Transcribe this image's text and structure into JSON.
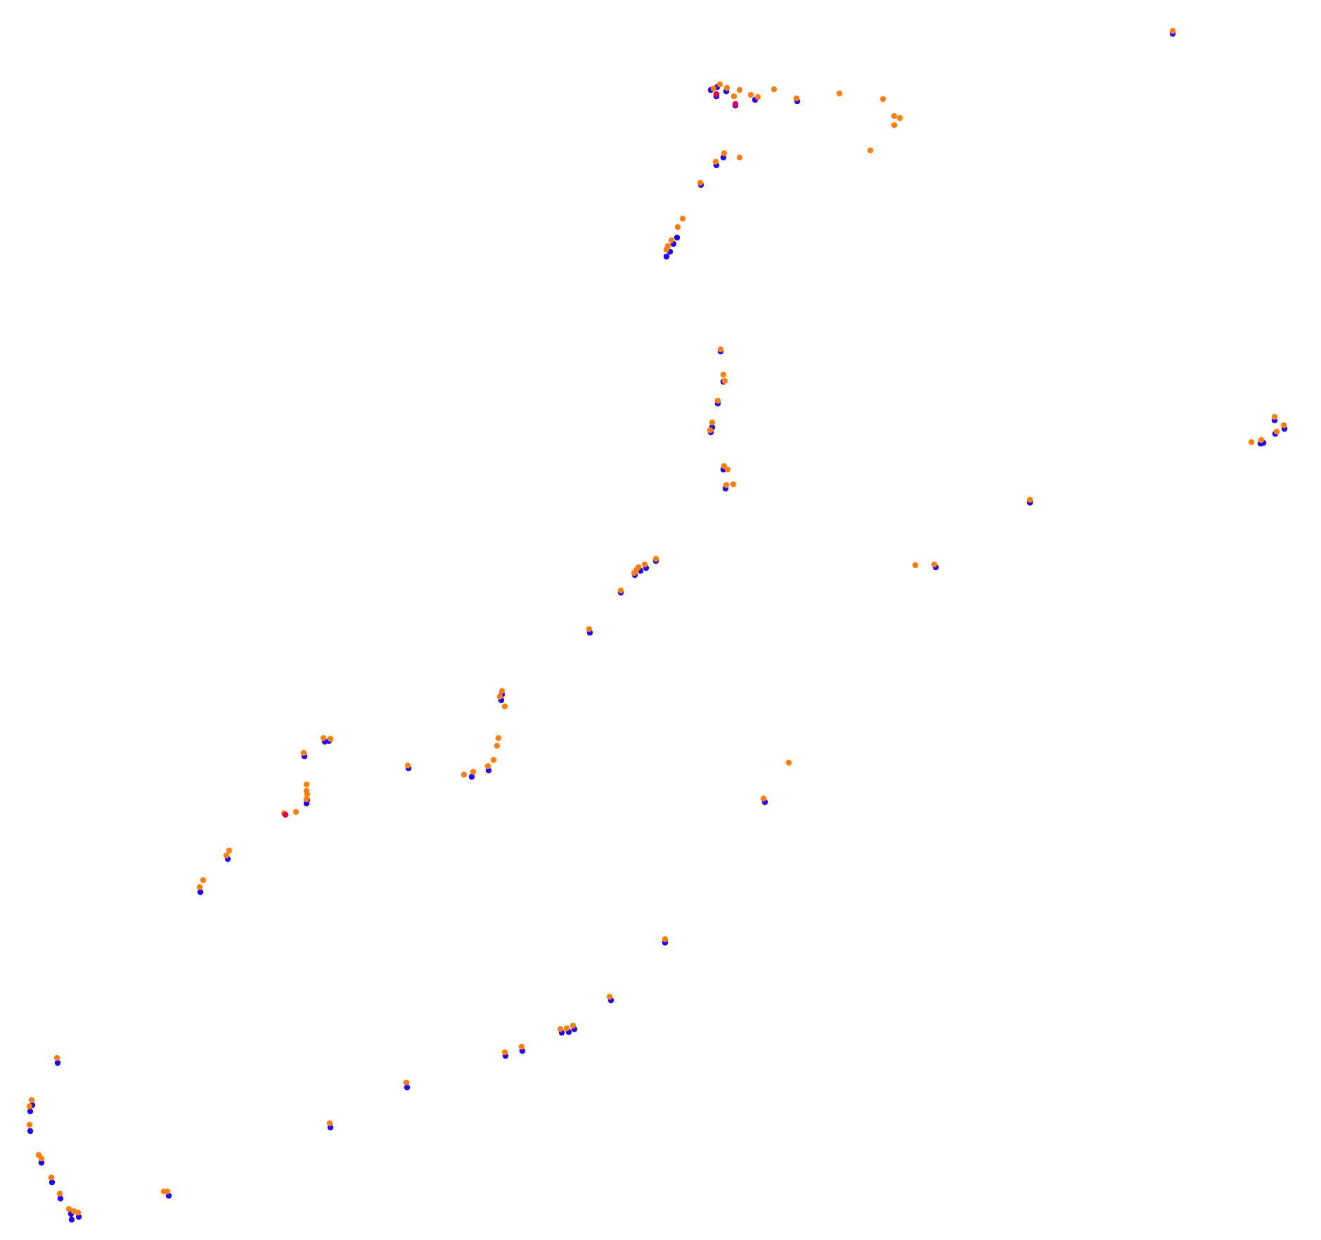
{
  "chart_data": {
    "type": "scatter",
    "colors": {
      "background": "#ffffff",
      "series_a": "#ff7f0e",
      "series_b": "#1f00ff",
      "series_c": "#e0004d"
    },
    "series": [
      {
        "color": "#1f00ff",
        "points": [
          [
            1667,
            46
          ],
          [
            1010,
            126
          ],
          [
            1019,
            122
          ],
          [
            1032,
            128
          ],
          [
            1018,
            135
          ],
          [
            1045,
            148
          ],
          [
            1073,
            140
          ],
          [
            1133,
            142
          ],
          [
            1028,
            222
          ],
          [
            1018,
            233
          ],
          [
            996,
            261
          ],
          [
            947,
            363
          ],
          [
            952,
            356
          ],
          [
            957,
            345
          ],
          [
            962,
            336
          ],
          [
            1024,
            498
          ],
          [
            1028,
            541
          ],
          [
            1020,
            572
          ],
          [
            1012,
            606
          ],
          [
            1010,
            613
          ],
          [
            1028,
            666
          ],
          [
            1031,
            693
          ],
          [
            1796,
            628
          ],
          [
            1792,
            629
          ],
          [
            1812,
            596
          ],
          [
            1826,
            608
          ],
          [
            1813,
            615
          ],
          [
            1464,
            713
          ],
          [
            1330,
            805
          ],
          [
            932,
            796
          ],
          [
            910,
            810
          ],
          [
            918,
            806
          ],
          [
            902,
            816
          ],
          [
            882,
            841
          ],
          [
            838,
            898
          ],
          [
            713,
            986
          ],
          [
            712,
            994
          ],
          [
            694,
            1094
          ],
          [
            670,
            1103
          ],
          [
            580,
            1091
          ],
          [
            467,
            1052
          ],
          [
            461,
            1053
          ],
          [
            432,
            1074
          ],
          [
            435,
            1141
          ],
          [
            436,
            1136
          ],
          [
            323,
            1220
          ],
          [
            284,
            1267
          ],
          [
            1087,
            1139
          ],
          [
            945,
            1339
          ],
          [
            868,
            1421
          ],
          [
            816,
            1462
          ],
          [
            808,
            1466
          ],
          [
            798,
            1467
          ],
          [
            742,
            1493
          ],
          [
            718,
            1500
          ],
          [
            578,
            1545
          ],
          [
            469,
            1602
          ],
          [
            81,
            1510
          ],
          [
            45,
            1570
          ],
          [
            42,
            1579
          ],
          [
            42,
            1607
          ],
          [
            58,
            1652
          ],
          [
            73,
            1680
          ],
          [
            85,
            1703
          ],
          [
            100,
            1725
          ],
          [
            101,
            1733
          ],
          [
            111,
            1729
          ],
          [
            239,
            1699
          ]
        ]
      },
      {
        "color": "#ff7f0e",
        "points": [
          [
            1668,
            44
          ],
          [
            1015,
            126
          ],
          [
            1024,
            120
          ],
          [
            1034,
            125
          ],
          [
            1044,
            137
          ],
          [
            1052,
            128
          ],
          [
            1068,
            135
          ],
          [
            1078,
            138
          ],
          [
            1101,
            127
          ],
          [
            1133,
            140
          ],
          [
            1194,
            133
          ],
          [
            1256,
            141
          ],
          [
            1272,
            165
          ],
          [
            1280,
            168
          ],
          [
            1272,
            178
          ],
          [
            1238,
            214
          ],
          [
            1030,
            218
          ],
          [
            1018,
            230
          ],
          [
            1052,
            224
          ],
          [
            996,
            260
          ],
          [
            971,
            311
          ],
          [
            964,
            323
          ],
          [
            955,
            342
          ],
          [
            950,
            350
          ],
          [
            948,
            355
          ],
          [
            1025,
            497
          ],
          [
            1029,
            533
          ],
          [
            1031,
            542
          ],
          [
            1021,
            570
          ],
          [
            1013,
            601
          ],
          [
            1010,
            612
          ],
          [
            1030,
            663
          ],
          [
            1035,
            668
          ],
          [
            1033,
            690
          ],
          [
            1043,
            689
          ],
          [
            1813,
            593
          ],
          [
            1826,
            605
          ],
          [
            1816,
            614
          ],
          [
            1794,
            626
          ],
          [
            1780,
            629
          ],
          [
            1465,
            711
          ],
          [
            1302,
            804
          ],
          [
            1329,
            803
          ],
          [
            933,
            795
          ],
          [
            917,
            803
          ],
          [
            908,
            807
          ],
          [
            905,
            811
          ],
          [
            902,
            815
          ],
          [
            883,
            840
          ],
          [
            838,
            895
          ],
          [
            714,
            983
          ],
          [
            711,
            991
          ],
          [
            718,
            1005
          ],
          [
            709,
            1050
          ],
          [
            707,
            1061
          ],
          [
            702,
            1081
          ],
          [
            694,
            1090
          ],
          [
            673,
            1098
          ],
          [
            660,
            1102
          ],
          [
            580,
            1089
          ],
          [
            460,
            1050
          ],
          [
            470,
            1051
          ],
          [
            432,
            1071
          ],
          [
            436,
            1116
          ],
          [
            436,
            1125
          ],
          [
            437,
            1130
          ],
          [
            436,
            1137
          ],
          [
            421,
            1155
          ],
          [
            404,
            1157
          ],
          [
            326,
            1210
          ],
          [
            322,
            1217
          ],
          [
            289,
            1252
          ],
          [
            284,
            1262
          ],
          [
            1122,
            1085
          ],
          [
            1086,
            1136
          ],
          [
            946,
            1336
          ],
          [
            867,
            1418
          ],
          [
            815,
            1459
          ],
          [
            806,
            1463
          ],
          [
            797,
            1464
          ],
          [
            742,
            1489
          ],
          [
            718,
            1497
          ],
          [
            578,
            1540
          ],
          [
            469,
            1598
          ],
          [
            81,
            1505
          ],
          [
            45,
            1565
          ],
          [
            42,
            1574
          ],
          [
            42,
            1600
          ],
          [
            55,
            1643
          ],
          [
            59,
            1648
          ],
          [
            73,
            1675
          ],
          [
            85,
            1698
          ],
          [
            98,
            1720
          ],
          [
            105,
            1723
          ],
          [
            111,
            1725
          ],
          [
            233,
            1695
          ],
          [
            238,
            1695
          ]
        ]
      },
      {
        "color": "#e0004d",
        "points": [
          [
            1019,
            134
          ],
          [
            1046,
            148
          ],
          [
            406,
            1159
          ]
        ]
      }
    ]
  }
}
